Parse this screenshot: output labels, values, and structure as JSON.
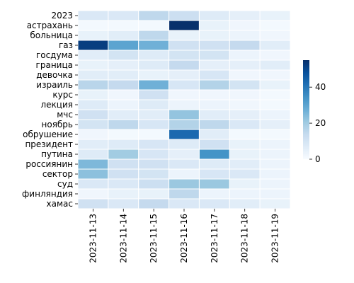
{
  "chart_data": {
    "type": "heatmap",
    "title": "",
    "xlabel": "",
    "ylabel": "",
    "colormap": "Blues",
    "color_range": [
      0,
      55
    ],
    "colorbar_ticks": [
      0,
      20,
      40
    ],
    "grid": false,
    "x": [
      "2023-11-13",
      "2023-11-14",
      "2023-11-15",
      "2023-11-16",
      "2023-11-17",
      "2023-11-18",
      "2023-11-19"
    ],
    "y": [
      "2023",
      "астрахань",
      "больница",
      "газ",
      "госдума",
      "граница",
      "девочка",
      "израиль",
      "курс",
      "лекция",
      "мчс",
      "ноябрь",
      "обрушение",
      "президент",
      "путина",
      "россиянин",
      "сектор",
      "суд",
      "финляндия",
      "хамас"
    ],
    "values": [
      [
        8,
        8,
        15,
        12,
        7,
        5,
        4
      ],
      [
        1,
        1,
        1,
        55,
        4,
        2,
        1
      ],
      [
        4,
        6,
        15,
        4,
        4,
        3,
        2
      ],
      [
        52,
        30,
        27,
        11,
        11,
        14,
        6
      ],
      [
        6,
        10,
        7,
        10,
        10,
        3,
        2
      ],
      [
        4,
        5,
        7,
        14,
        5,
        5,
        6
      ],
      [
        6,
        6,
        4,
        5,
        9,
        2,
        2
      ],
      [
        16,
        14,
        27,
        9,
        17,
        10,
        4
      ],
      [
        4,
        2,
        11,
        2,
        2,
        2,
        1
      ],
      [
        7,
        3,
        7,
        3,
        3,
        2,
        1
      ],
      [
        11,
        6,
        6,
        22,
        6,
        5,
        3
      ],
      [
        10,
        15,
        9,
        17,
        15,
        8,
        5
      ],
      [
        2,
        1,
        1,
        43,
        6,
        1,
        1
      ],
      [
        6,
        7,
        9,
        7,
        11,
        4,
        3
      ],
      [
        7,
        20,
        9,
        5,
        34,
        4,
        3
      ],
      [
        25,
        11,
        11,
        8,
        7,
        6,
        3
      ],
      [
        23,
        11,
        10,
        3,
        9,
        8,
        3
      ],
      [
        8,
        8,
        12,
        21,
        21,
        4,
        3
      ],
      [
        2,
        4,
        4,
        15,
        3,
        3,
        3
      ],
      [
        11,
        8,
        14,
        8,
        8,
        6,
        4
      ]
    ]
  }
}
